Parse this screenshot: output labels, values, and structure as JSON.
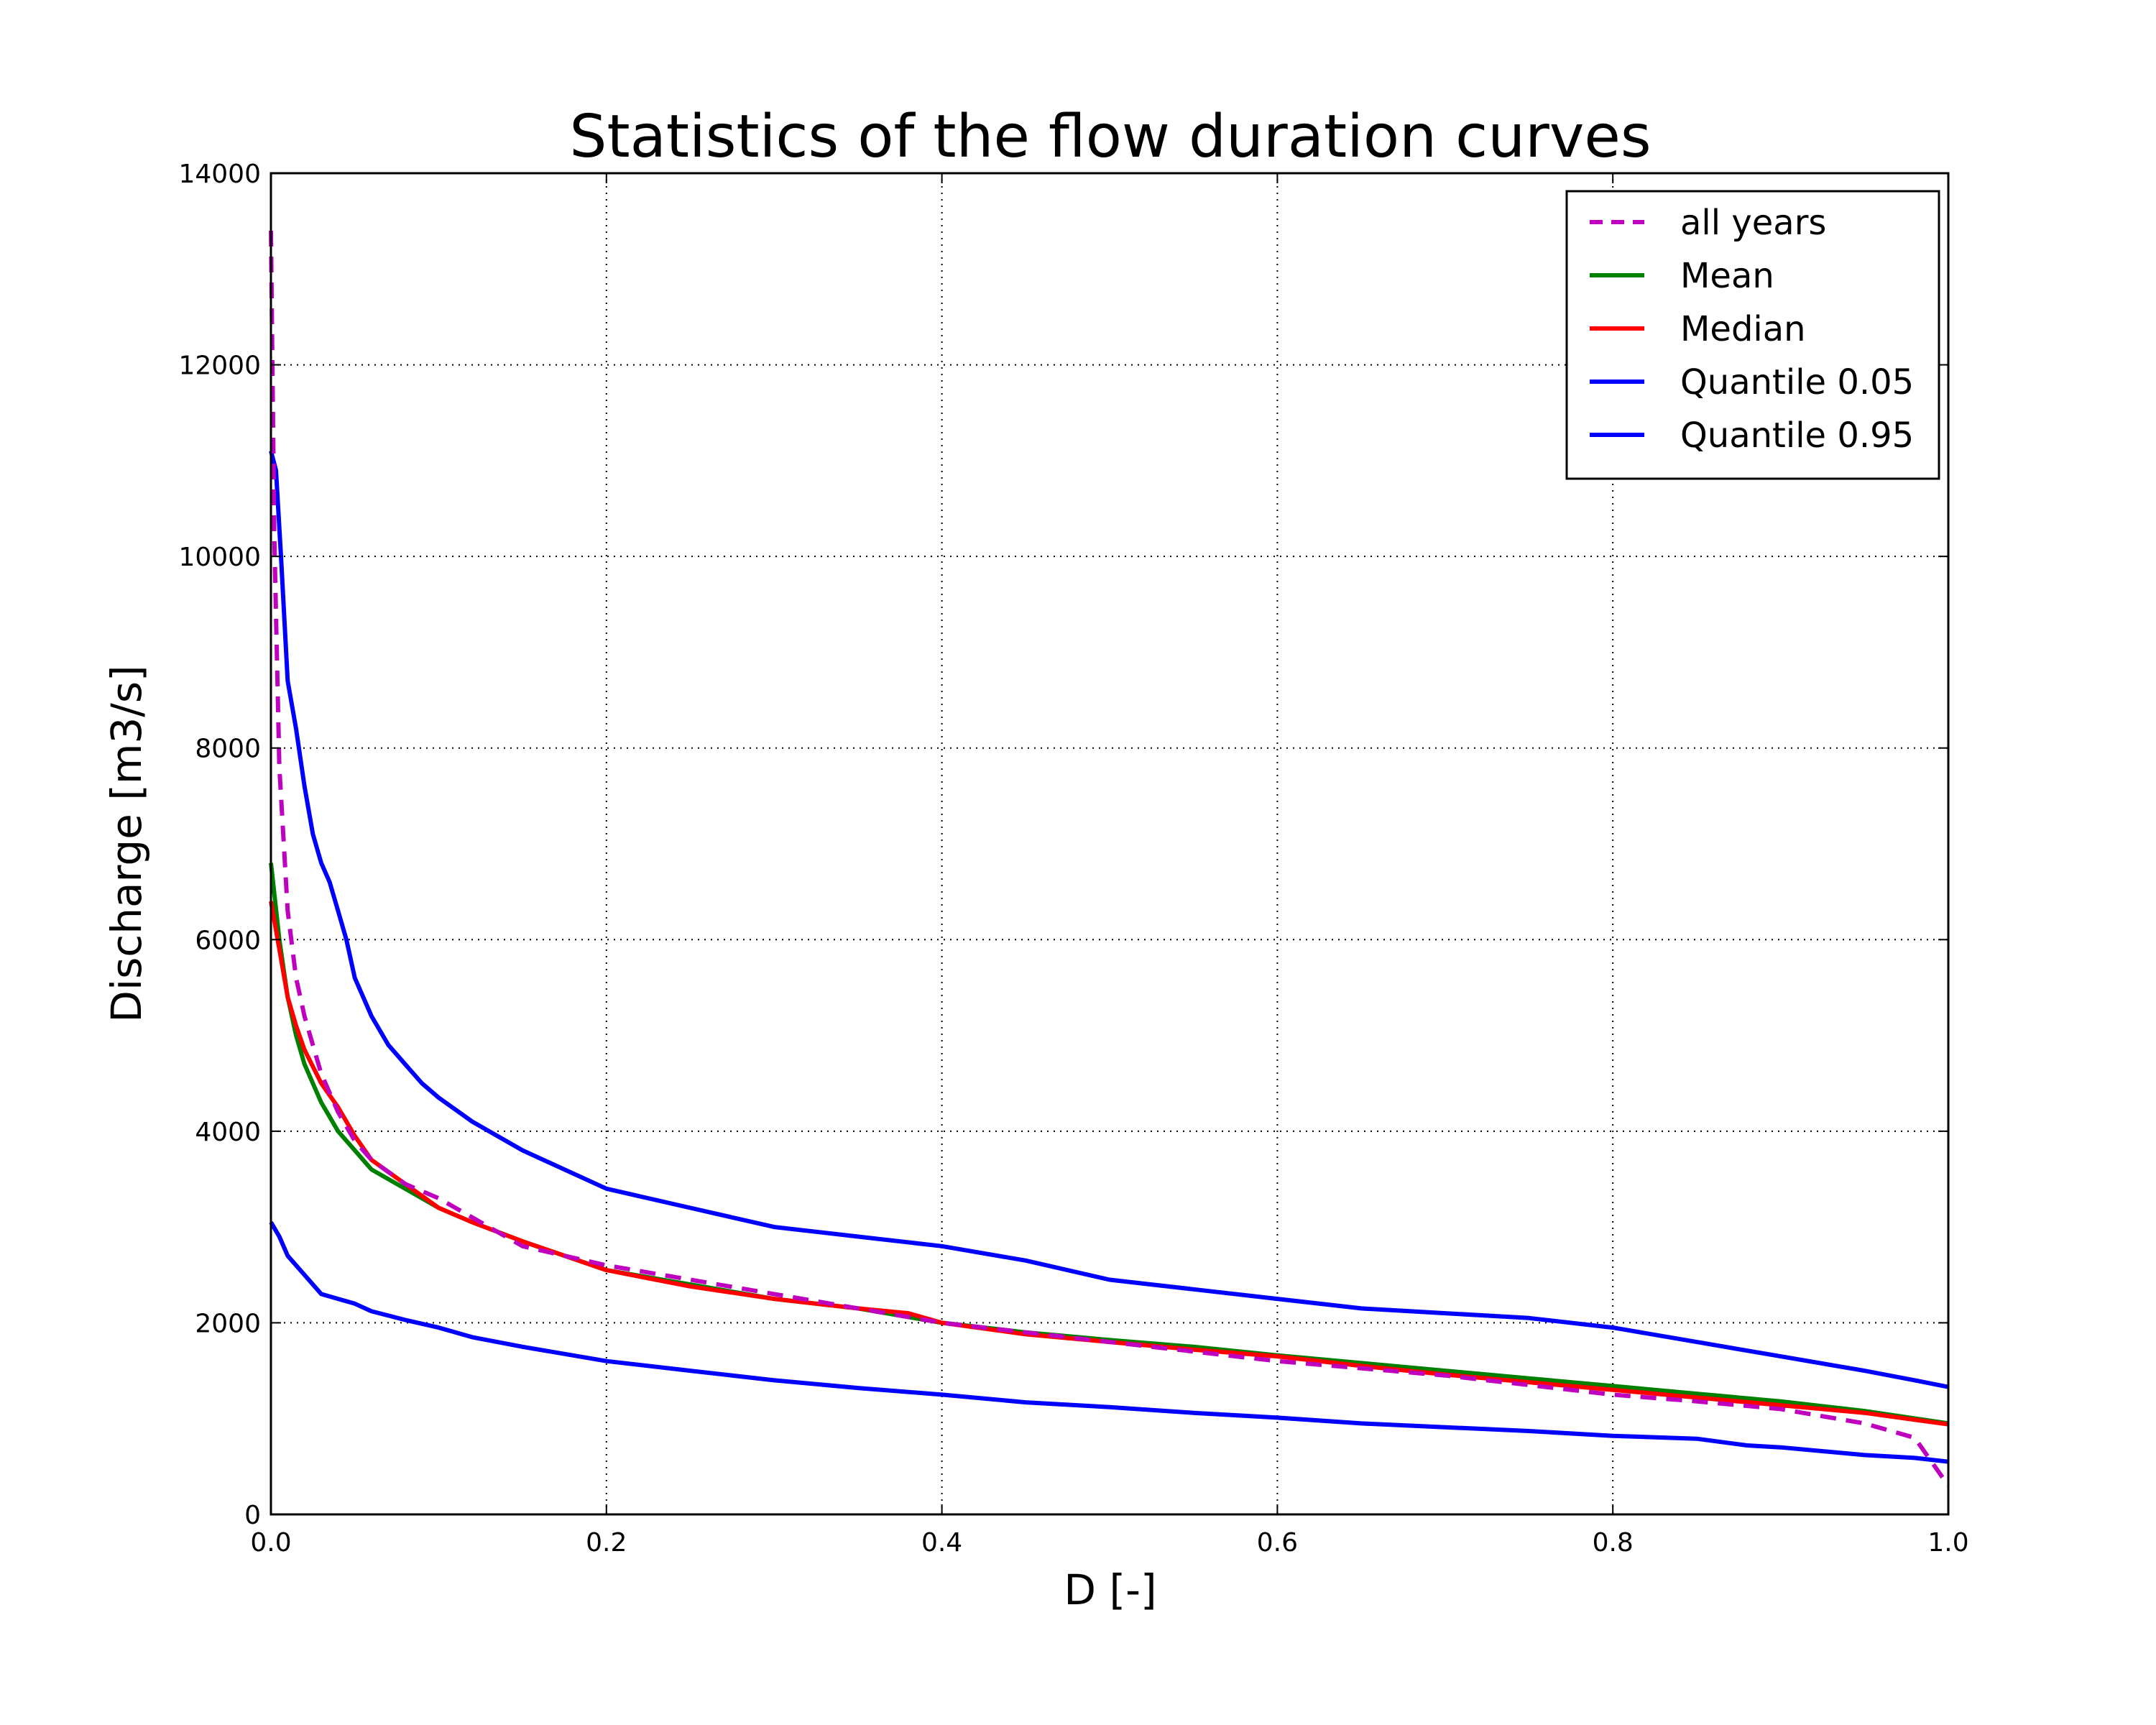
{
  "chart_data": {
    "type": "line",
    "title": "Statistics of the flow duration curves",
    "xlabel": "D [-]",
    "ylabel": "Discharge [m3/s]",
    "xlim": [
      0,
      1
    ],
    "ylim": [
      0,
      14000
    ],
    "xticks": [
      "0.0",
      "0.2",
      "0.4",
      "0.6",
      "0.8",
      "1.0"
    ],
    "yticks": [
      "0",
      "2000",
      "4000",
      "6000",
      "8000",
      "10000",
      "12000",
      "14000"
    ],
    "grid": true,
    "legend_position": "top-right",
    "series": [
      {
        "name": "all years",
        "color": "#bf00bf",
        "style": "dashed",
        "x": [
          0,
          0.002,
          0.005,
          0.01,
          0.015,
          0.02,
          0.03,
          0.04,
          0.05,
          0.06,
          0.08,
          0.1,
          0.15,
          0.2,
          0.3,
          0.4,
          0.5,
          0.6,
          0.7,
          0.8,
          0.85,
          0.9,
          0.95,
          0.98,
          1.0
        ],
        "y": [
          13400,
          10200,
          7800,
          6300,
          5600,
          5200,
          4600,
          4200,
          3900,
          3700,
          3450,
          3300,
          2800,
          2600,
          2300,
          2000,
          1800,
          1600,
          1450,
          1250,
          1180,
          1100,
          950,
          800,
          300
        ]
      },
      {
        "name": "Mean",
        "color": "#008000",
        "style": "solid",
        "x": [
          0,
          0.005,
          0.01,
          0.015,
          0.02,
          0.03,
          0.04,
          0.05,
          0.06,
          0.08,
          0.1,
          0.12,
          0.15,
          0.2,
          0.25,
          0.3,
          0.35,
          0.4,
          0.45,
          0.5,
          0.55,
          0.6,
          0.65,
          0.7,
          0.75,
          0.8,
          0.85,
          0.9,
          0.95,
          1.0
        ],
        "y": [
          6800,
          6000,
          5400,
          5000,
          4700,
          4300,
          4000,
          3800,
          3600,
          3400,
          3200,
          3050,
          2850,
          2550,
          2400,
          2250,
          2150,
          2000,
          1900,
          1820,
          1750,
          1660,
          1580,
          1500,
          1420,
          1340,
          1260,
          1180,
          1080,
          950
        ]
      },
      {
        "name": "Median",
        "color": "#ff0000",
        "style": "solid",
        "x": [
          0,
          0.005,
          0.01,
          0.015,
          0.02,
          0.03,
          0.04,
          0.05,
          0.06,
          0.08,
          0.1,
          0.12,
          0.15,
          0.2,
          0.25,
          0.3,
          0.35,
          0.38,
          0.4,
          0.45,
          0.5,
          0.55,
          0.6,
          0.65,
          0.7,
          0.75,
          0.8,
          0.85,
          0.9,
          0.95,
          1.0
        ],
        "y": [
          6400,
          5900,
          5400,
          5100,
          4850,
          4500,
          4250,
          3950,
          3700,
          3450,
          3200,
          3050,
          2850,
          2550,
          2380,
          2250,
          2150,
          2100,
          2000,
          1880,
          1800,
          1720,
          1650,
          1550,
          1460,
          1380,
          1300,
          1220,
          1140,
          1060,
          940
        ]
      },
      {
        "name": "Quantile 0.05",
        "color": "#0000ff",
        "style": "solid",
        "x": [
          0,
          0.005,
          0.01,
          0.015,
          0.02,
          0.03,
          0.04,
          0.05,
          0.06,
          0.08,
          0.1,
          0.12,
          0.15,
          0.2,
          0.25,
          0.3,
          0.35,
          0.4,
          0.45,
          0.5,
          0.55,
          0.6,
          0.65,
          0.7,
          0.75,
          0.8,
          0.85,
          0.88,
          0.9,
          0.95,
          0.98,
          1.0
        ],
        "y": [
          3050,
          2900,
          2700,
          2600,
          2500,
          2300,
          2250,
          2200,
          2120,
          2030,
          1950,
          1850,
          1750,
          1600,
          1500,
          1400,
          1320,
          1250,
          1170,
          1120,
          1060,
          1010,
          950,
          910,
          870,
          820,
          790,
          720,
          700,
          620,
          590,
          550
        ]
      },
      {
        "name": "Quantile 0.95",
        "color": "#0000ff",
        "style": "solid",
        "x": [
          0,
          0.003,
          0.006,
          0.01,
          0.015,
          0.02,
          0.025,
          0.03,
          0.035,
          0.04,
          0.045,
          0.05,
          0.055,
          0.06,
          0.07,
          0.08,
          0.09,
          0.1,
          0.12,
          0.15,
          0.2,
          0.25,
          0.3,
          0.35,
          0.4,
          0.45,
          0.5,
          0.55,
          0.6,
          0.65,
          0.7,
          0.75,
          0.8,
          0.85,
          0.9,
          0.95,
          0.98,
          1.0
        ],
        "y": [
          11100,
          10900,
          10000,
          8700,
          8200,
          7600,
          7100,
          6800,
          6600,
          6300,
          6000,
          5600,
          5400,
          5200,
          4900,
          4700,
          4500,
          4350,
          4100,
          3800,
          3400,
          3200,
          3000,
          2900,
          2800,
          2650,
          2450,
          2350,
          2250,
          2150,
          2100,
          2050,
          1950,
          1800,
          1650,
          1500,
          1400,
          1330
        ]
      }
    ]
  }
}
